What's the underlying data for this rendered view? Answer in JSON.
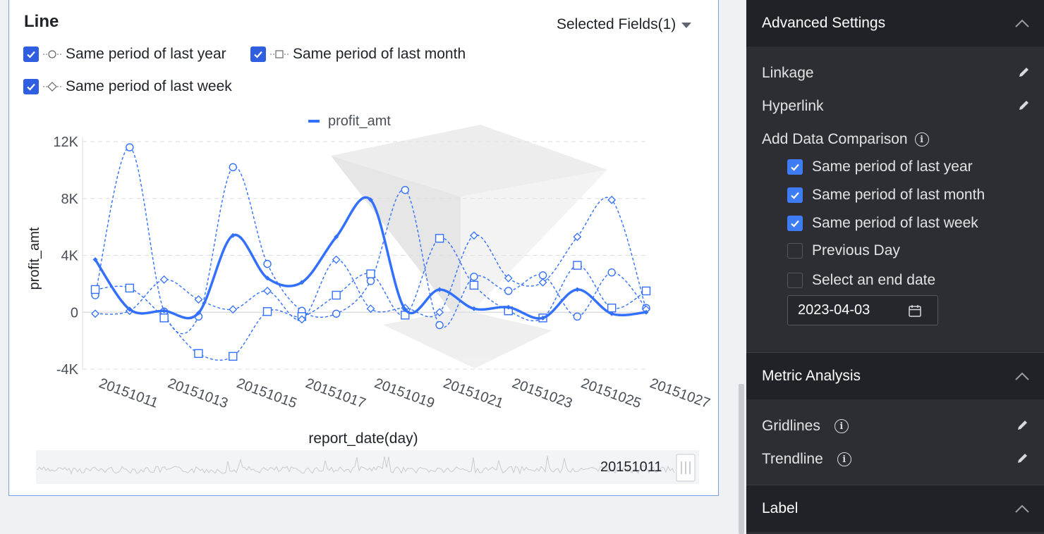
{
  "chart_card": {
    "title": "Line",
    "selected_fields": "Selected Fields(1)",
    "comparison_options": [
      {
        "label": "Same period of last year",
        "checked": true,
        "marker": "circle"
      },
      {
        "label": "Same period of last month",
        "checked": true,
        "marker": "square"
      },
      {
        "label": "Same period of last week",
        "checked": true,
        "marker": "diamond"
      }
    ],
    "slider_label": "20151011"
  },
  "chart_data": {
    "type": "line",
    "legend": [
      "profit_amt"
    ],
    "xlabel": "report_date(day)",
    "ylabel": "profit_amt",
    "ylim": [
      -4000,
      12000
    ],
    "yticks": [
      "-4K",
      "0",
      "4K",
      "8K",
      "12K"
    ],
    "ytick_values": [
      -4000,
      0,
      4000,
      8000,
      12000
    ],
    "x_tick_labels": [
      "20151011",
      "20151013",
      "20151015",
      "20151017",
      "20151019",
      "20151021",
      "20151023",
      "20151025",
      "20151027"
    ],
    "x": [
      "20151011",
      "20151012",
      "20151013",
      "20151014",
      "20151015",
      "20151016",
      "20151017",
      "20151018",
      "20151019",
      "20151020",
      "20151021",
      "20151022",
      "20151023",
      "20151024",
      "20151025",
      "20151026",
      "20151027"
    ],
    "grid": true,
    "series": [
      {
        "name": "profit_amt",
        "style": "solid",
        "marker": "dot",
        "values": [
          3700,
          200,
          100,
          -50,
          5400,
          2400,
          2100,
          5300,
          7900,
          200,
          1600,
          250,
          350,
          -400,
          1600,
          -100,
          0
        ]
      },
      {
        "name": "Same period of last year",
        "style": "dashed",
        "marker": "circle",
        "values": [
          1200,
          11600,
          50,
          -300,
          10200,
          3400,
          100,
          -100,
          2200,
          8600,
          -900,
          2500,
          1500,
          2600,
          -300,
          2800,
          300
        ]
      },
      {
        "name": "Same period of last month",
        "style": "dashed",
        "marker": "square",
        "values": [
          1600,
          1700,
          -400,
          -2900,
          -3100,
          50,
          -300,
          1200,
          2700,
          -200,
          5200,
          1900,
          100,
          -400,
          3300,
          300,
          1500
        ]
      },
      {
        "name": "Same period of last week",
        "style": "dashed",
        "marker": "diamond",
        "values": [
          -100,
          100,
          2300,
          900,
          200,
          1500,
          -500,
          3700,
          250,
          300,
          0,
          5400,
          2400,
          2100,
          5300,
          7900,
          200
        ]
      }
    ],
    "colors": {
      "line": "#3370ff",
      "grid": "#dcdee3",
      "axis_text": "#4a4f57"
    }
  },
  "panel": {
    "advanced_settings": "Advanced Settings",
    "linkage": "Linkage",
    "hyperlink": "Hyperlink",
    "add_data_comparison": "Add Data Comparison",
    "options": [
      {
        "label": "Same period of last year",
        "checked": true
      },
      {
        "label": "Same period of last month",
        "checked": true
      },
      {
        "label": "Same period of last week",
        "checked": true
      },
      {
        "label": "Previous Day",
        "checked": false
      },
      {
        "label": "Select an end date",
        "checked": false
      }
    ],
    "end_date": "2023-04-03",
    "metric_analysis": "Metric Analysis",
    "gridlines": "Gridlines",
    "trendline": "Trendline",
    "label": "Label"
  }
}
